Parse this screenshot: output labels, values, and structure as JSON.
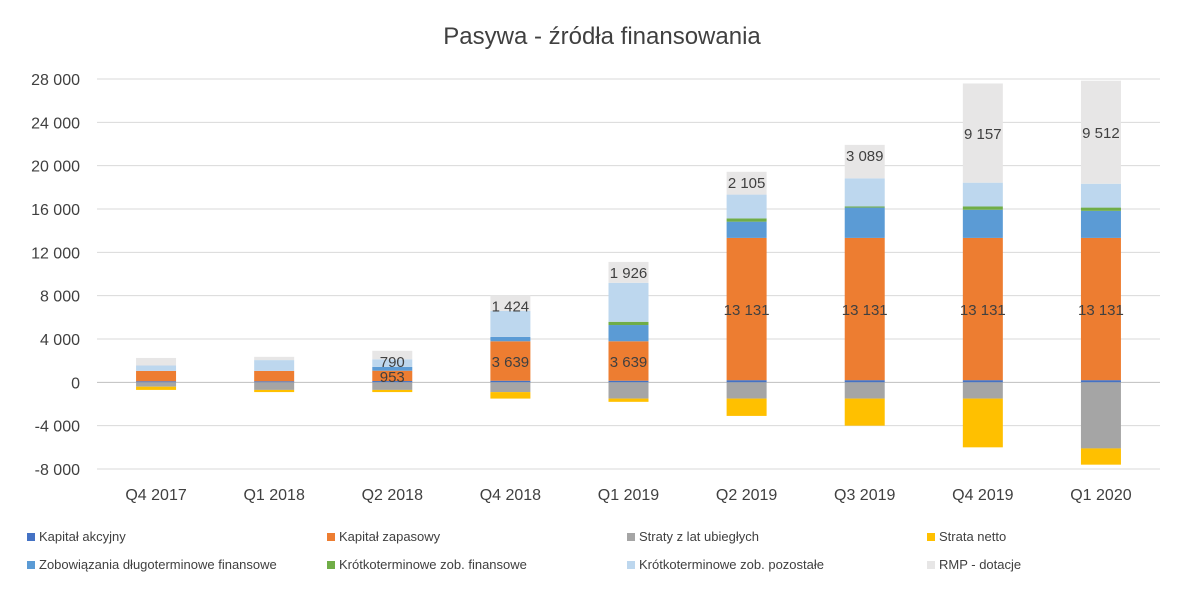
{
  "chart_data": {
    "type": "bar",
    "stacked": true,
    "title": "Pasywa - źródła finansowania",
    "categories": [
      "Q4 2017",
      "Q1 2018",
      "Q2 2018",
      "Q4 2018",
      "Q1 2019",
      "Q2 2019",
      "Q3 2019",
      "Q4 2019",
      "Q1 2020"
    ],
    "ylim": [
      -8000,
      28000
    ],
    "yticks": [
      -8000,
      -4000,
      0,
      4000,
      8000,
      12000,
      16000,
      20000,
      24000,
      28000
    ],
    "ytick_labels": [
      "-8 000",
      "-4 000",
      "0",
      "4 000",
      "8 000",
      "12 000",
      "16 000",
      "20 000",
      "24 000",
      "28 000"
    ],
    "grid": true,
    "legend_position": "bottom",
    "series": [
      {
        "name": "Kapitał akcyjny",
        "color": "#4472C4",
        "values": [
          100,
          100,
          120,
          150,
          150,
          200,
          200,
          200,
          200
        ]
      },
      {
        "name": "Kapitał zapasowy",
        "color": "#ED7D31",
        "values": [
          953,
          953,
          953,
          3639,
          3639,
          13131,
          13131,
          13131,
          13131
        ]
      },
      {
        "name": "Straty z lat ubiegłych",
        "color": "#A5A5A5",
        "values": [
          -400,
          -700,
          -700,
          -900,
          -1500,
          -1500,
          -1500,
          -1500,
          -6100
        ]
      },
      {
        "name": "Strata netto",
        "color": "#FFC000",
        "values": [
          -300,
          -200,
          -200,
          -600,
          -300,
          -1600,
          -2500,
          -4500,
          -1500
        ]
      },
      {
        "name": "Zobowiązania długoterminowe finansowe",
        "color": "#5B9BD5",
        "values": [
          0,
          0,
          350,
          400,
          1500,
          1500,
          2800,
          2600,
          2500
        ]
      },
      {
        "name": "Krótkoterminowe zob. finansowe",
        "color": "#70AD47",
        "values": [
          0,
          0,
          0,
          0,
          300,
          300,
          100,
          300,
          300
        ]
      },
      {
        "name": "Krótkoterminowe zob. pozostałe",
        "color": "#BDD7EE",
        "values": [
          500,
          1000,
          700,
          2400,
          3600,
          2200,
          2600,
          2200,
          2200
        ]
      },
      {
        "name": "RMP - dotacje",
        "color": "#E7E6E6",
        "values": [
          700,
          300,
          790,
          1424,
          1926,
          2105,
          3089,
          9157,
          9512
        ]
      }
    ],
    "data_labels": {
      "Kapitał zapasowy": [
        "",
        "",
        "953",
        "3 639",
        "3 639",
        "13 131",
        "13 131",
        "13 131",
        "13 131"
      ],
      "RMP - dotacje": [
        "",
        "",
        "790",
        "1 424",
        "1 926",
        "2 105",
        "3 089",
        "9 157",
        "9 512"
      ]
    }
  }
}
